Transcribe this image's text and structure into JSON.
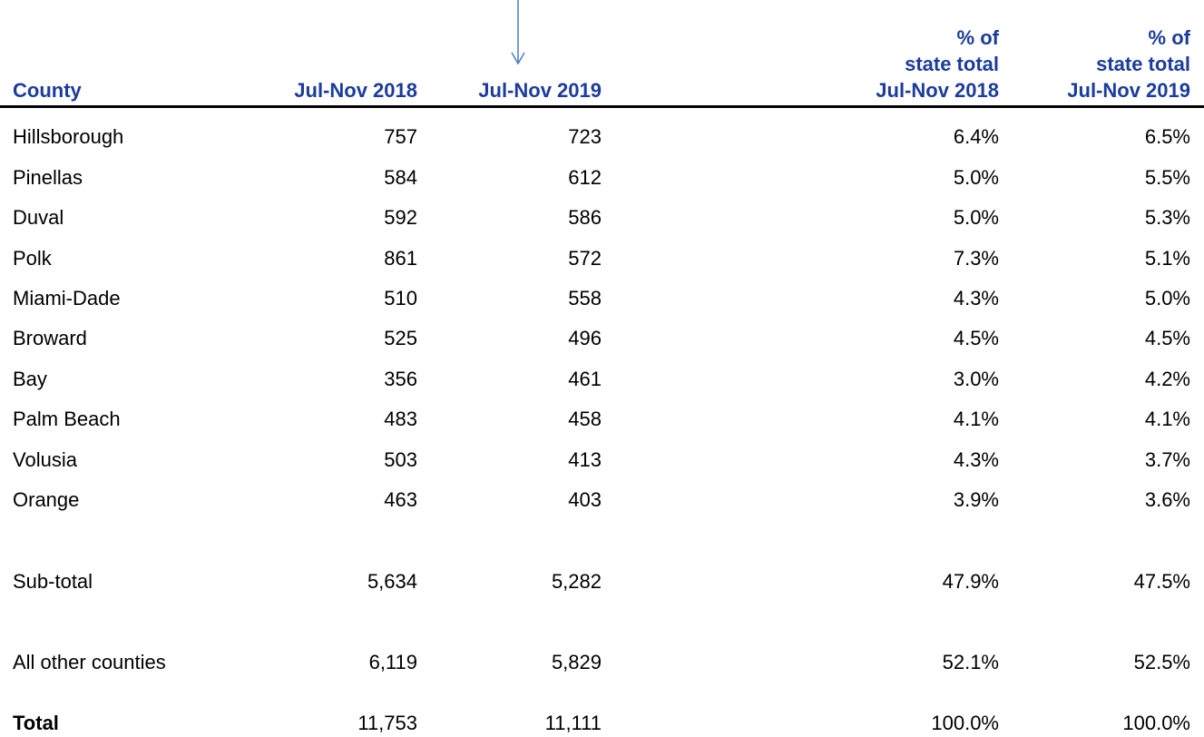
{
  "table": {
    "header": [
      [
        "County"
      ],
      [
        "Jul-Nov 2018"
      ],
      [
        "Jul-Nov 2019"
      ],
      [
        "% of",
        "state total",
        "Jul-Nov 2018"
      ],
      [
        "% of",
        "state total",
        "Jul-Nov 2019"
      ]
    ],
    "rows": [
      [
        "Hillsborough",
        "757",
        "723",
        "6.4%",
        "6.5%"
      ],
      [
        "Pinellas",
        "584",
        "612",
        "5.0%",
        "5.5%"
      ],
      [
        "Duval",
        "592",
        "586",
        "5.0%",
        "5.3%"
      ],
      [
        "Polk",
        "861",
        "572",
        "7.3%",
        "5.1%"
      ],
      [
        "Miami-Dade",
        "510",
        "558",
        "4.3%",
        "5.0%"
      ],
      [
        "Broward",
        "525",
        "496",
        "4.5%",
        "4.5%"
      ],
      [
        "Bay",
        "356",
        "461",
        "3.0%",
        "4.2%"
      ],
      [
        "Palm Beach",
        "483",
        "458",
        "4.1%",
        "4.1%"
      ],
      [
        "Volusia",
        "503",
        "413",
        "4.3%",
        "3.7%"
      ],
      [
        "Orange",
        "463",
        "403",
        "3.9%",
        "3.6%"
      ],
      [
        "Sub-total",
        "5,634",
        "5,282",
        "47.9%",
        "47.5%"
      ],
      [
        "All other counties",
        "6,119",
        "5,829",
        "52.1%",
        "52.5%"
      ],
      [
        "Total",
        "11,753",
        "11,111",
        "100.0%",
        "100.0%"
      ]
    ]
  }
}
